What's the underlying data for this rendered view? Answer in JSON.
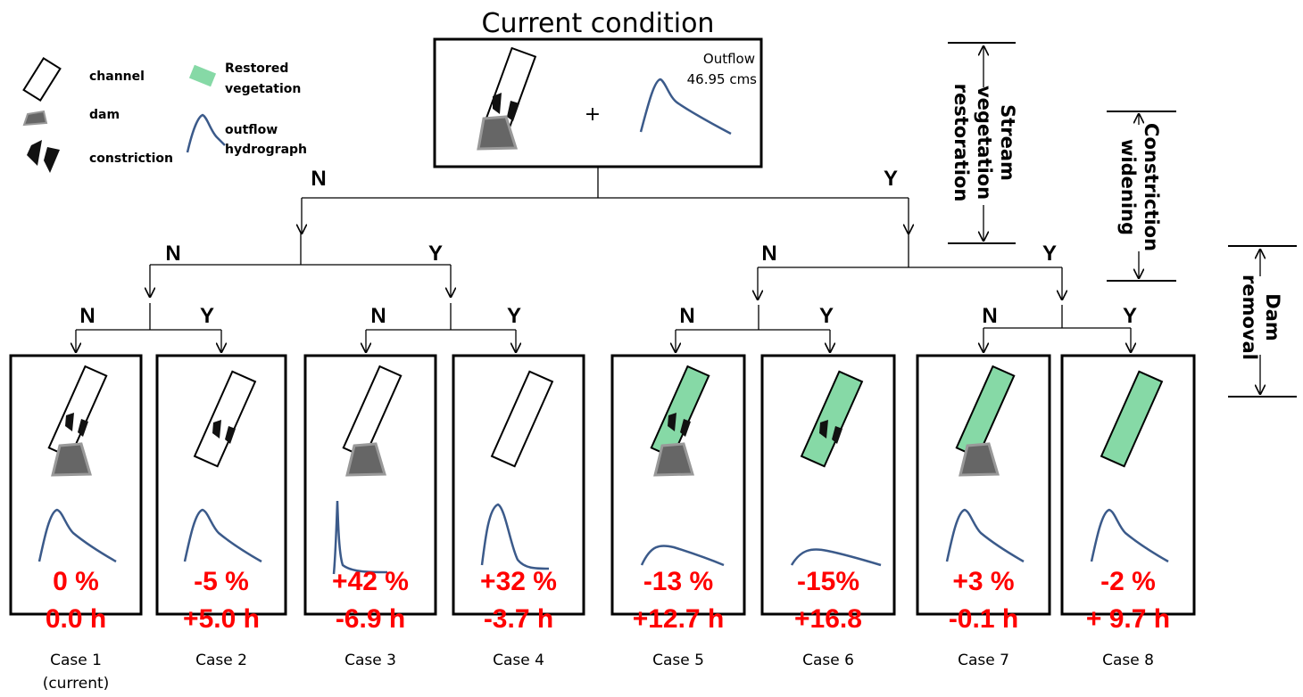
{
  "title": "Current condition",
  "legend": {
    "channel": "channel",
    "dam": "dam",
    "constriction": "constriction",
    "restored": [
      "Restored",
      "vegetation"
    ],
    "hydrograph": [
      "outflow",
      "hydrograph"
    ]
  },
  "current": {
    "plus": "+",
    "outflow_label": "Outflow",
    "outflow_value": "46.95 cms"
  },
  "axes": {
    "stream": [
      "Stream",
      "vegetation",
      "restoration"
    ],
    "constriction": [
      "Constriction",
      "widening"
    ],
    "dam": [
      "Dam",
      "removal"
    ]
  },
  "branch_labels": {
    "l1": [
      "N",
      "Y"
    ],
    "l2": [
      "N",
      "Y",
      "N",
      "Y"
    ],
    "l3": [
      "N",
      "Y",
      "N",
      "Y",
      "N",
      "Y",
      "N",
      "Y"
    ]
  },
  "cases": [
    {
      "name": "Case 1",
      "sub": "(current)",
      "pct": "0 %",
      "time": "0.0 h",
      "veg": false,
      "dam": true,
      "constr": true
    },
    {
      "name": "Case 2",
      "sub": "",
      "pct": "-5 %",
      "time": "+5.0 h",
      "veg": false,
      "dam": false,
      "constr": true
    },
    {
      "name": "Case 3",
      "sub": "",
      "pct": "+42 %",
      "time": "-6.9 h",
      "veg": false,
      "dam": true,
      "constr": false
    },
    {
      "name": "Case 4",
      "sub": "",
      "pct": "+32 %",
      "time": "-3.7 h",
      "veg": false,
      "dam": false,
      "constr": false
    },
    {
      "name": "Case 5",
      "sub": "",
      "pct": "-13 %",
      "time": "+12.7 h",
      "veg": true,
      "dam": true,
      "constr": true
    },
    {
      "name": "Case 6",
      "sub": "",
      "pct": "-15%",
      "time": "+16.8",
      "veg": true,
      "dam": false,
      "constr": true
    },
    {
      "name": "Case 7",
      "sub": "",
      "pct": "+3 %",
      "time": "-0.1 h",
      "veg": true,
      "dam": true,
      "constr": false
    },
    {
      "name": "Case 8",
      "sub": "",
      "pct": "-2 %",
      "time": "+ 9.7 h",
      "veg": true,
      "dam": false,
      "constr": false
    }
  ],
  "colors": {
    "result": "#ff0000",
    "hydrograph": "#3b5a8a",
    "vegetation": "#86d9a6",
    "dam_fill": "#666666",
    "dam_stroke": "#999999"
  }
}
